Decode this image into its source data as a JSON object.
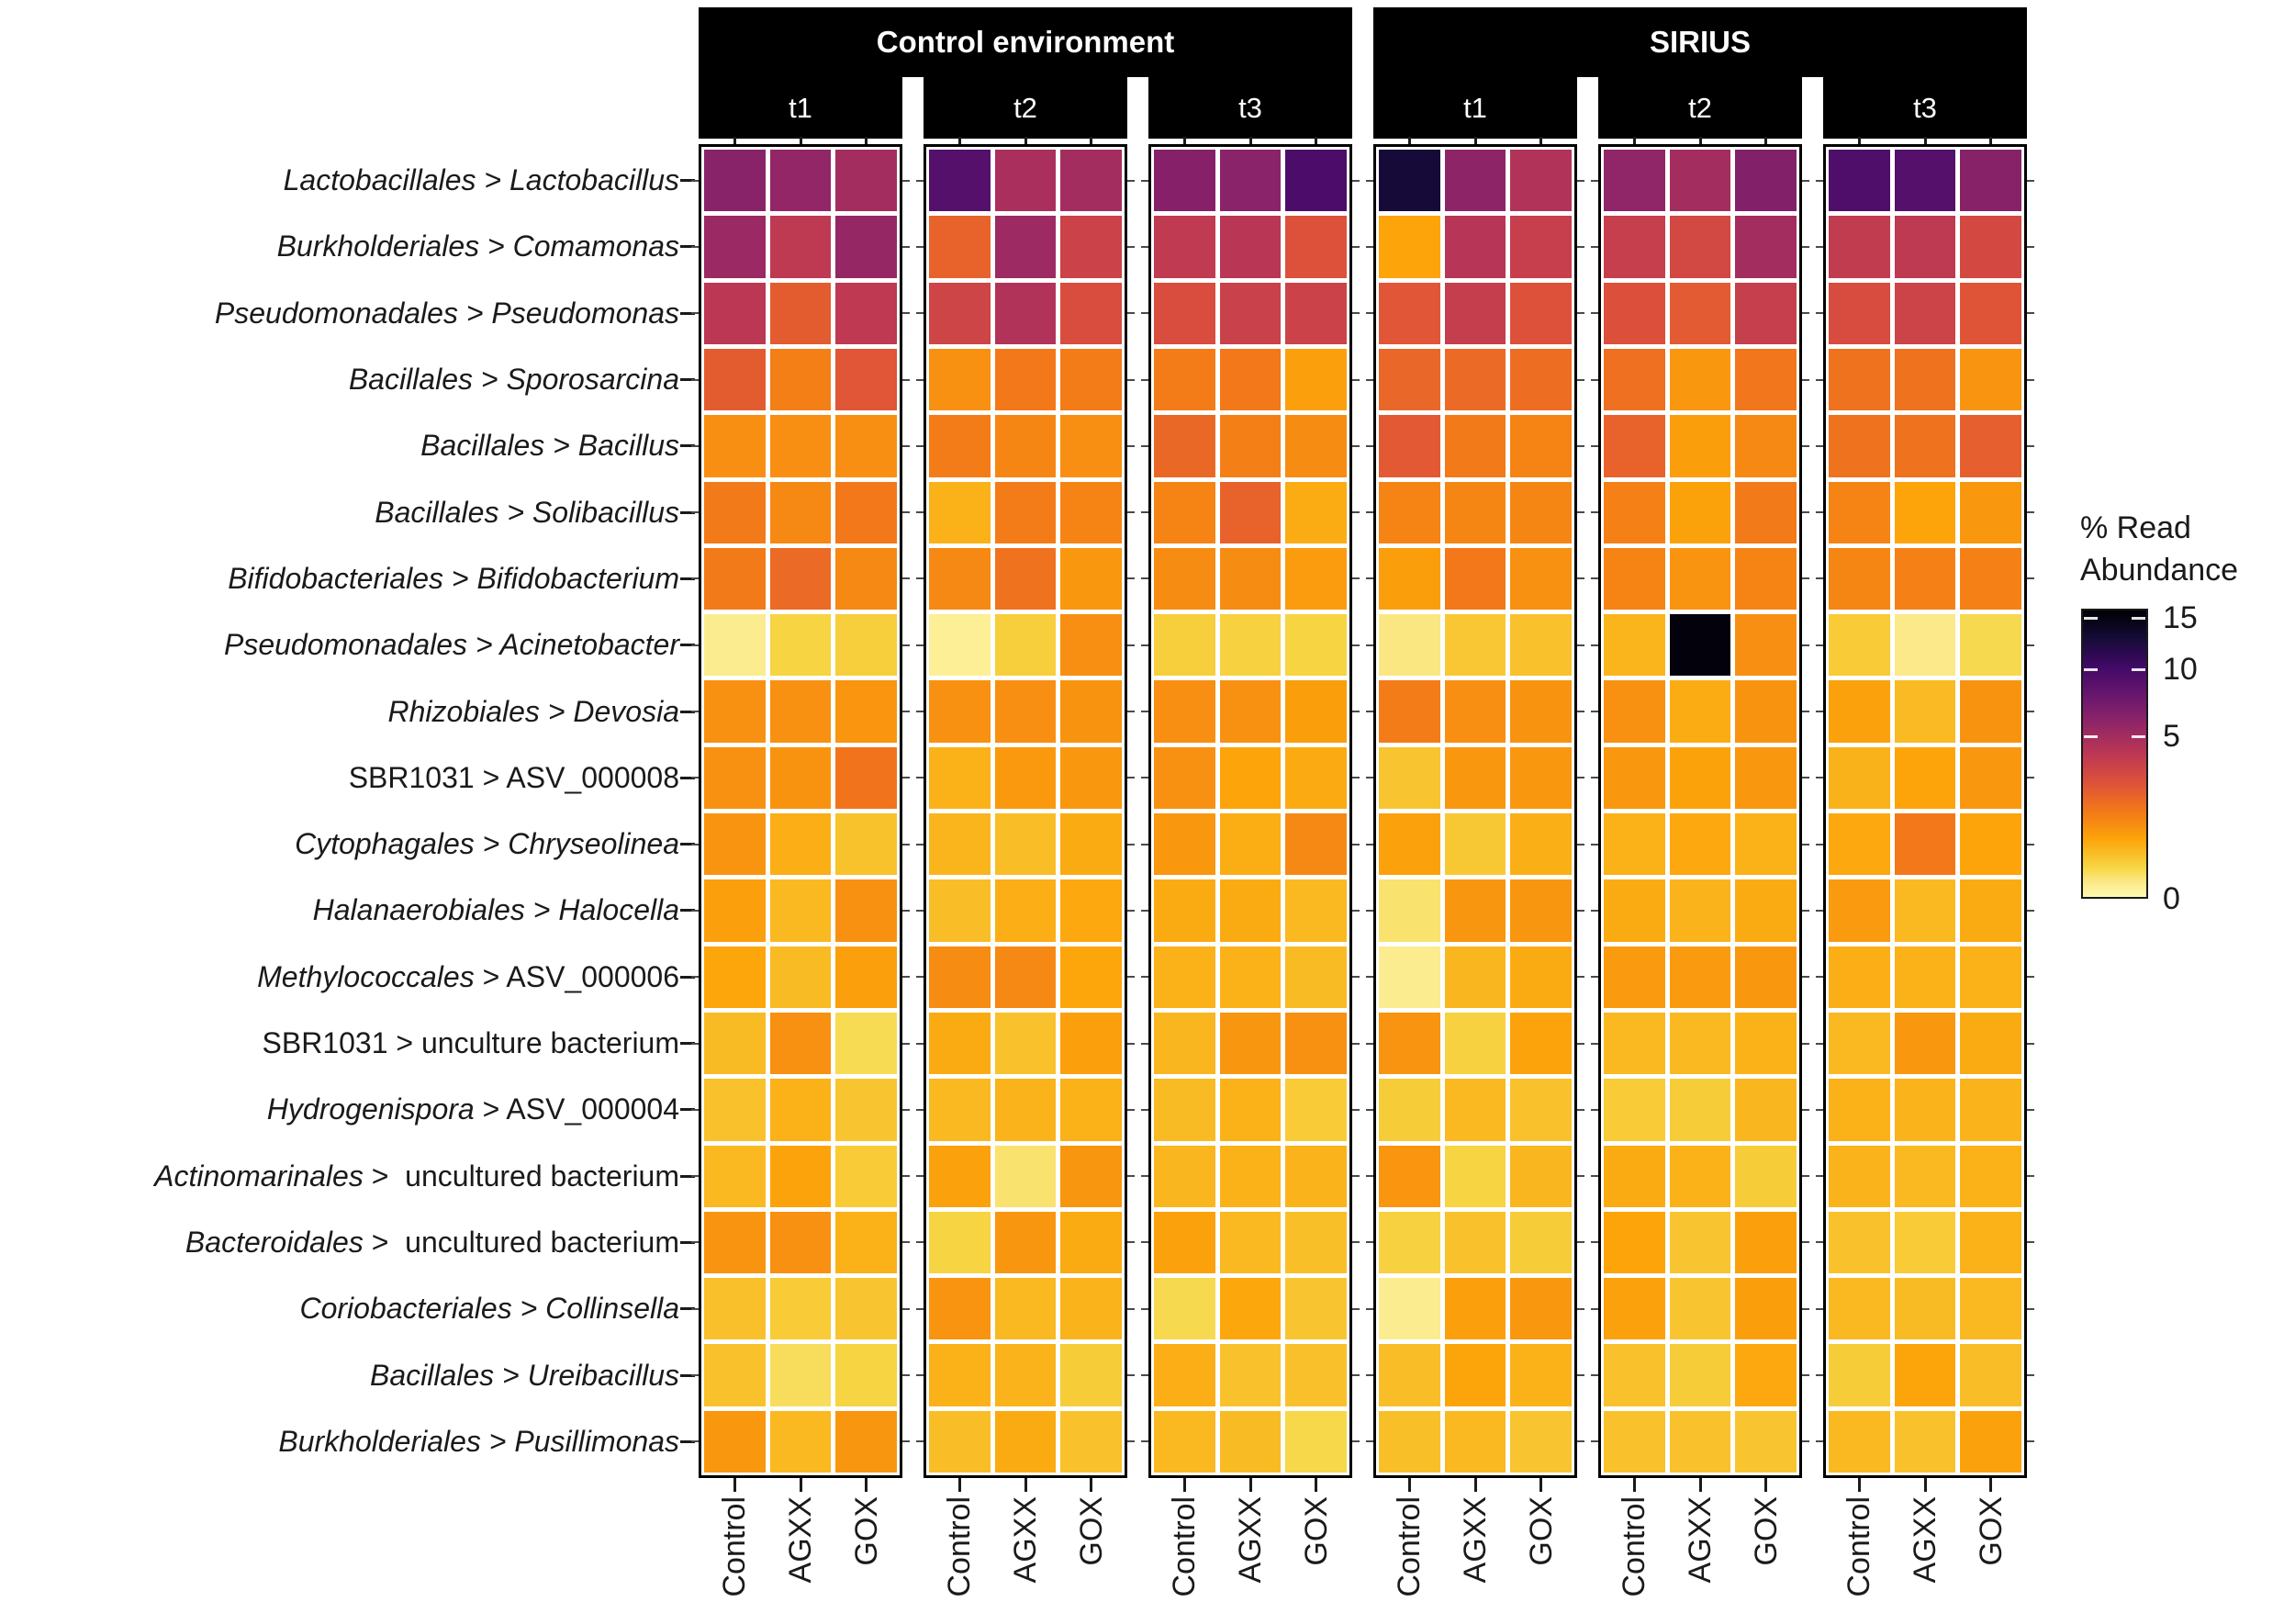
{
  "page": {
    "background": "#ffffff"
  },
  "chart_data": {
    "type": "heatmap",
    "title": "",
    "value_unit": "% read abundance",
    "facets": {
      "environments": [
        "Control environment",
        "SIRIUS"
      ],
      "timepoints": [
        "t1",
        "t2",
        "t3"
      ]
    },
    "x_columns": [
      "Control",
      "AGXX",
      "GOX"
    ],
    "strip_bg": "#000000",
    "strip_text_color": "#ffffff",
    "legend": {
      "title_line1": "% Read",
      "title_line2": "Abundance",
      "tick_values": [
        15,
        10,
        5,
        0
      ],
      "tick_labels": [
        "15",
        "10",
        "5",
        "0"
      ],
      "vmax": 16,
      "transform": "sqrt",
      "colormap": "inferno-reversed",
      "colormap_stops": [
        [
          0.0,
          "#000004"
        ],
        [
          0.1,
          "#160b39"
        ],
        [
          0.2,
          "#420a68"
        ],
        [
          0.3,
          "#6a176e"
        ],
        [
          0.4,
          "#932667"
        ],
        [
          0.5,
          "#bc3754"
        ],
        [
          0.6,
          "#dd513a"
        ],
        [
          0.7,
          "#f37819"
        ],
        [
          0.8,
          "#fca50a"
        ],
        [
          0.9,
          "#f6d746"
        ],
        [
          0.95,
          "#fbe98a"
        ],
        [
          1.0,
          "#fdfcb0"
        ]
      ]
    },
    "row_labels": [
      {
        "segments": [
          {
            "text": "Lactobacillales > Lactobacillus",
            "italic": true
          }
        ]
      },
      {
        "segments": [
          {
            "text": "Burkholderiales > Comamonas",
            "italic": true
          }
        ]
      },
      {
        "segments": [
          {
            "text": "Pseudomonadales > Pseudomonas",
            "italic": true
          }
        ]
      },
      {
        "segments": [
          {
            "text": "Bacillales > Sporosarcina",
            "italic": true
          }
        ]
      },
      {
        "segments": [
          {
            "text": "Bacillales > Bacillus",
            "italic": true
          }
        ]
      },
      {
        "segments": [
          {
            "text": "Bacillales > Solibacillus",
            "italic": true
          }
        ]
      },
      {
        "segments": [
          {
            "text": "Bifidobacteriales > Bifidobacterium",
            "italic": true
          }
        ]
      },
      {
        "segments": [
          {
            "text": "Pseudomonadales > Acinetobacter",
            "italic": true
          }
        ]
      },
      {
        "segments": [
          {
            "text": "Rhizobiales > Devosia",
            "italic": true
          }
        ]
      },
      {
        "segments": [
          {
            "text": "SBR1031 > ASV_000008",
            "italic": false
          }
        ]
      },
      {
        "segments": [
          {
            "text": "Cytophagales > Chryseolinea",
            "italic": true
          }
        ]
      },
      {
        "segments": [
          {
            "text": "Halanaerobiales > Halocella",
            "italic": true
          }
        ]
      },
      {
        "segments": [
          {
            "text": "Methylococcales",
            "italic": true
          },
          {
            "text": " > ASV_000006",
            "italic": false
          }
        ]
      },
      {
        "segments": [
          {
            "text": "SBR1031 > unculture bacterium",
            "italic": false
          }
        ]
      },
      {
        "segments": [
          {
            "text": "Hydrogenispora",
            "italic": true
          },
          {
            "text": " > ASV_000004",
            "italic": false
          }
        ]
      },
      {
        "segments": [
          {
            "text": "Actinomarinales",
            "italic": true
          },
          {
            "text": " >  uncultured bacterium",
            "italic": false
          }
        ]
      },
      {
        "segments": [
          {
            "text": "Bacteroidales",
            "italic": true
          },
          {
            "text": " >  uncultured bacterium",
            "italic": false
          }
        ]
      },
      {
        "segments": [
          {
            "text": "Coriobacteriales > Collinsella",
            "italic": true
          }
        ]
      },
      {
        "segments": [
          {
            "text": "Bacillales > Ureibacillus",
            "italic": true
          }
        ]
      },
      {
        "segments": [
          {
            "text": "Burkholderiales > Pusillimonas",
            "italic": true
          }
        ]
      }
    ],
    "panels": [
      {
        "environment": "Control environment",
        "timepoint": "t1",
        "values": [
          [
            6.3,
            5.8,
            5.0
          ],
          [
            5.4,
            3.9,
            5.6
          ],
          [
            4.0,
            2.2,
            3.85
          ],
          [
            2.2,
            1.3,
            2.4
          ],
          [
            1.0,
            1.0,
            1.0
          ],
          [
            1.4,
            1.1,
            1.45
          ],
          [
            1.4,
            1.8,
            1.1
          ],
          [
            0.03,
            0.18,
            0.22
          ],
          [
            0.95,
            0.95,
            0.88
          ],
          [
            0.95,
            0.92,
            1.55
          ],
          [
            0.9,
            0.53,
            0.32
          ],
          [
            0.73,
            0.42,
            0.95
          ],
          [
            0.63,
            0.39,
            0.73
          ],
          [
            0.39,
            0.97,
            0.13
          ],
          [
            0.33,
            0.5,
            0.3
          ],
          [
            0.42,
            0.67,
            0.25
          ],
          [
            0.9,
            0.97,
            0.5
          ],
          [
            0.34,
            0.25,
            0.3
          ],
          [
            0.33,
            0.11,
            0.18
          ],
          [
            0.85,
            0.42,
            0.87
          ]
        ]
      },
      {
        "environment": "Control environment",
        "timepoint": "t2",
        "values": [
          [
            9.1,
            4.75,
            5.0
          ],
          [
            2.0,
            5.3,
            3.3
          ],
          [
            3.2,
            4.4,
            2.75
          ],
          [
            0.95,
            1.45,
            1.35
          ],
          [
            1.35,
            1.15,
            1.0
          ],
          [
            0.5,
            1.35,
            1.2
          ],
          [
            1.1,
            1.6,
            0.85
          ],
          [
            0.02,
            0.22,
            1.0
          ],
          [
            0.95,
            1.0,
            0.92
          ],
          [
            0.5,
            0.82,
            0.85
          ],
          [
            0.45,
            0.37,
            0.56
          ],
          [
            0.37,
            0.53,
            0.6
          ],
          [
            1.05,
            1.1,
            0.63
          ],
          [
            0.56,
            0.33,
            0.73
          ],
          [
            0.42,
            0.47,
            0.5
          ],
          [
            0.7,
            0.08,
            0.87
          ],
          [
            0.18,
            0.87,
            0.56
          ],
          [
            0.9,
            0.42,
            0.47
          ],
          [
            0.5,
            0.47,
            0.24
          ],
          [
            0.37,
            0.56,
            0.33
          ]
        ]
      },
      {
        "environment": "Control environment",
        "timepoint": "t3",
        "values": [
          [
            6.4,
            6.2,
            9.7
          ],
          [
            3.8,
            4.1,
            2.55
          ],
          [
            2.75,
            3.4,
            3.3
          ],
          [
            1.35,
            1.45,
            0.72
          ],
          [
            1.85,
            1.3,
            1.05
          ],
          [
            1.2,
            2.0,
            0.55
          ],
          [
            1.05,
            1.05,
            0.77
          ],
          [
            0.22,
            0.2,
            0.18
          ],
          [
            1.0,
            0.95,
            0.75
          ],
          [
            0.95,
            0.65,
            0.57
          ],
          [
            0.85,
            0.54,
            1.1
          ],
          [
            0.56,
            0.56,
            0.42
          ],
          [
            0.5,
            0.5,
            0.39
          ],
          [
            0.44,
            0.87,
            0.95
          ],
          [
            0.39,
            0.5,
            0.25
          ],
          [
            0.44,
            0.5,
            0.47
          ],
          [
            0.7,
            0.42,
            0.35
          ],
          [
            0.14,
            0.62,
            0.3
          ],
          [
            0.53,
            0.33,
            0.34
          ],
          [
            0.42,
            0.39,
            0.15
          ]
        ]
      },
      {
        "environment": "SIRIUS",
        "timepoint": "t1",
        "values": [
          [
            13.0,
            6.0,
            4.4
          ],
          [
            0.65,
            4.2,
            3.5
          ],
          [
            2.4,
            3.6,
            2.55
          ],
          [
            1.9,
            1.8,
            1.7
          ],
          [
            2.3,
            1.4,
            1.2
          ],
          [
            1.2,
            1.15,
            1.15
          ],
          [
            0.75,
            1.45,
            0.95
          ],
          [
            0.05,
            0.28,
            0.33
          ],
          [
            1.35,
            1.0,
            0.92
          ],
          [
            0.3,
            0.85,
            0.85
          ],
          [
            0.7,
            0.27,
            0.52
          ],
          [
            0.08,
            0.87,
            0.87
          ],
          [
            0.03,
            0.44,
            0.56
          ],
          [
            0.9,
            0.2,
            0.67
          ],
          [
            0.24,
            0.42,
            0.33
          ],
          [
            0.88,
            0.18,
            0.44
          ],
          [
            0.2,
            0.33,
            0.24
          ],
          [
            0.03,
            0.72,
            0.85
          ],
          [
            0.37,
            0.64,
            0.5
          ],
          [
            0.35,
            0.42,
            0.3
          ]
        ]
      },
      {
        "environment": "SIRIUS",
        "timepoint": "t2",
        "values": [
          [
            5.9,
            5.0,
            6.6
          ],
          [
            3.55,
            3.0,
            5.0
          ],
          [
            2.6,
            2.25,
            3.55
          ],
          [
            1.65,
            0.85,
            1.5
          ],
          [
            2.0,
            0.75,
            1.1
          ],
          [
            1.25,
            0.68,
            1.4
          ],
          [
            1.2,
            0.9,
            1.2
          ],
          [
            0.45,
            15.5,
            1.0
          ],
          [
            0.95,
            0.55,
            0.92
          ],
          [
            0.85,
            0.68,
            0.85
          ],
          [
            0.5,
            0.6,
            0.5
          ],
          [
            0.56,
            0.47,
            0.56
          ],
          [
            0.8,
            0.8,
            0.85
          ],
          [
            0.42,
            0.42,
            0.5
          ],
          [
            0.25,
            0.24,
            0.44
          ],
          [
            0.56,
            0.5,
            0.24
          ],
          [
            0.66,
            0.3,
            0.72
          ],
          [
            0.7,
            0.3,
            0.75
          ],
          [
            0.33,
            0.24,
            0.6
          ],
          [
            0.33,
            0.33,
            0.3
          ]
        ]
      },
      {
        "environment": "SIRIUS",
        "timepoint": "t3",
        "values": [
          [
            9.4,
            9.1,
            6.35
          ],
          [
            3.7,
            3.9,
            2.95
          ],
          [
            2.8,
            3.25,
            2.45
          ],
          [
            1.6,
            1.6,
            0.9
          ],
          [
            1.6,
            1.6,
            2.1
          ],
          [
            1.2,
            0.66,
            0.85
          ],
          [
            1.15,
            1.25,
            1.25
          ],
          [
            0.25,
            0.04,
            0.14
          ],
          [
            0.7,
            0.4,
            0.92
          ],
          [
            0.48,
            0.65,
            0.85
          ],
          [
            0.6,
            1.45,
            0.65
          ],
          [
            0.8,
            0.42,
            0.56
          ],
          [
            0.53,
            0.5,
            0.5
          ],
          [
            0.42,
            0.85,
            0.56
          ],
          [
            0.5,
            0.47,
            0.47
          ],
          [
            0.47,
            0.42,
            0.5
          ],
          [
            0.33,
            0.25,
            0.5
          ],
          [
            0.42,
            0.39,
            0.42
          ],
          [
            0.24,
            0.64,
            0.37
          ],
          [
            0.42,
            0.33,
            0.7
          ]
        ]
      }
    ]
  }
}
